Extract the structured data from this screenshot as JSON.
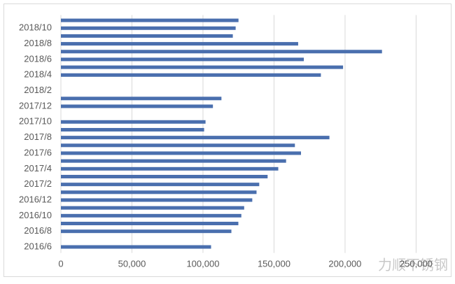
{
  "chart_data": {
    "type": "hbar",
    "categories": [
      "2016/6",
      null,
      "2016/8",
      null,
      "2016/10",
      null,
      "2016/12",
      null,
      "2017/2",
      null,
      "2017/4",
      null,
      "2017/6",
      null,
      "2017/8",
      null,
      "2017/10",
      null,
      "2017/12",
      null,
      "2018/2",
      null,
      "2018/4",
      null,
      "2018/6",
      null,
      "2018/8",
      null,
      "2018/10",
      null
    ],
    "values": [
      105700,
      null,
      120000,
      124900,
      127000,
      129000,
      134700,
      137700,
      139600,
      145500,
      153000,
      158500,
      169000,
      164700,
      189000,
      100800,
      101800,
      null,
      107000,
      113000,
      null,
      null,
      183000,
      198600,
      171000,
      226000,
      167000,
      121000,
      123000,
      125000
    ],
    "color": "#4a6fae",
    "xlim": [
      0,
      270000
    ],
    "xticks": [
      0,
      {
        "value": 50000,
        "label": "50,000"
      },
      {
        "value": 100000,
        "label": "100,000"
      },
      {
        "value": 150000,
        "label": "150,000"
      },
      {
        "value": 200000,
        "label": "200,000"
      },
      {
        "value": 250000,
        "label": "250,000"
      }
    ],
    "grid": true,
    "watermark": "力顺不锈钢"
  }
}
